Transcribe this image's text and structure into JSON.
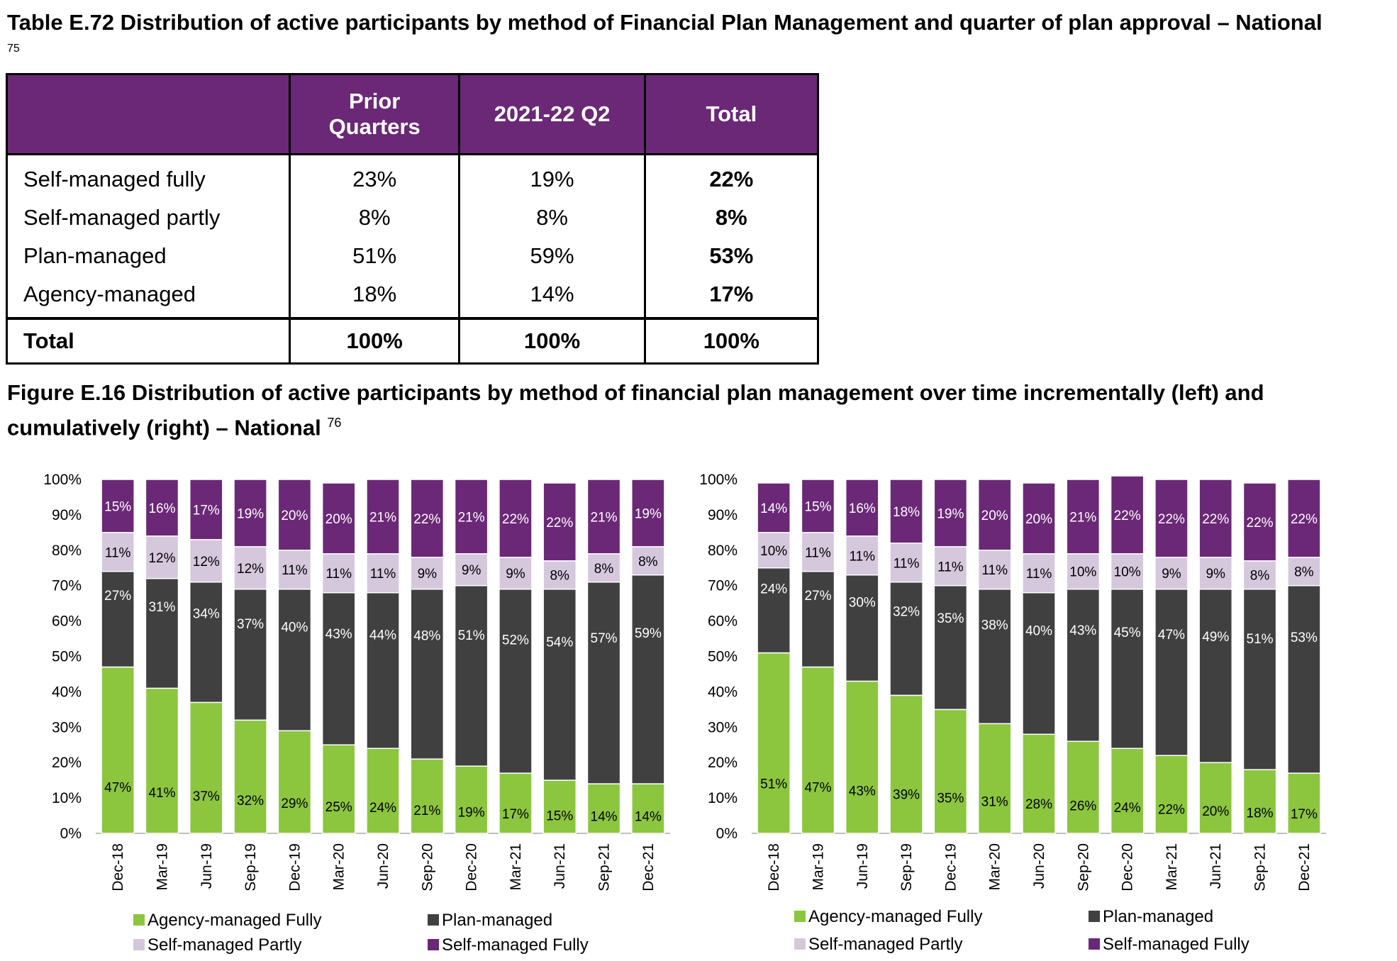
{
  "table": {
    "title": "Table E.72 Distribution of active participants by method of Financial Plan Management and quarter of plan approval – National",
    "footnote": "75",
    "headers": [
      "",
      "Prior\nQuarters",
      "2021-22 Q2",
      "Total"
    ],
    "rows": [
      {
        "label": "Self-managed fully",
        "prior": "23%",
        "q2": "19%",
        "total": "22%"
      },
      {
        "label": "Self-managed partly",
        "prior": "8%",
        "q2": "8%",
        "total": "8%"
      },
      {
        "label": "Plan-managed",
        "prior": "51%",
        "q2": "59%",
        "total": "53%"
      },
      {
        "label": "Agency-managed",
        "prior": "18%",
        "q2": "14%",
        "total": "17%"
      }
    ],
    "total_row": {
      "label": "Total",
      "prior": "100%",
      "q2": "100%",
      "total": "100%"
    }
  },
  "figure": {
    "title": "Figure E.16 Distribution of active participants by method of financial plan management over time incrementally (left) and cumulatively (right) – National",
    "footnote": "76"
  },
  "colors": {
    "agency": "#8cc63f",
    "plan": "#404040",
    "self_partly": "#d5c8dd",
    "self_fully": "#6b2877",
    "header_bg": "#6b2877"
  },
  "chart_data": [
    {
      "type": "bar",
      "stacked": true,
      "categories": [
        "Dec-18",
        "Mar-19",
        "Jun-19",
        "Sep-19",
        "Dec-19",
        "Mar-20",
        "Jun-20",
        "Sep-20",
        "Dec-20",
        "Mar-21",
        "Jun-21",
        "Sep-21",
        "Dec-21"
      ],
      "ylim": [
        0,
        100
      ],
      "yticks": [
        "0%",
        "10%",
        "20%",
        "30%",
        "40%",
        "50%",
        "60%",
        "70%",
        "80%",
        "90%",
        "100%"
      ],
      "series": [
        {
          "name": "Agency-managed Fully",
          "values": [
            47,
            41,
            37,
            32,
            29,
            25,
            24,
            21,
            19,
            17,
            15,
            14,
            14
          ]
        },
        {
          "name": "Plan-managed",
          "values": [
            27,
            31,
            34,
            37,
            40,
            43,
            44,
            48,
            51,
            52,
            54,
            57,
            59
          ]
        },
        {
          "name": "Self-managed Partly",
          "values": [
            11,
            12,
            12,
            12,
            11,
            11,
            11,
            9,
            9,
            9,
            8,
            8,
            8
          ]
        },
        {
          "name": "Self-managed Fully",
          "values": [
            15,
            16,
            17,
            19,
            20,
            20,
            21,
            22,
            21,
            22,
            22,
            21,
            19
          ]
        }
      ],
      "legend": "bottom"
    },
    {
      "type": "bar",
      "stacked": true,
      "categories": [
        "Dec-18",
        "Mar-19",
        "Jun-19",
        "Sep-19",
        "Dec-19",
        "Mar-20",
        "Jun-20",
        "Sep-20",
        "Dec-20",
        "Mar-21",
        "Jun-21",
        "Sep-21",
        "Dec-21"
      ],
      "ylim": [
        0,
        100
      ],
      "yticks": [
        "0%",
        "10%",
        "20%",
        "30%",
        "40%",
        "50%",
        "60%",
        "70%",
        "80%",
        "90%",
        "100%"
      ],
      "series": [
        {
          "name": "Agency-managed Fully",
          "values": [
            51,
            47,
            43,
            39,
            35,
            31,
            28,
            26,
            24,
            22,
            20,
            18,
            17
          ]
        },
        {
          "name": "Plan-managed",
          "values": [
            24,
            27,
            30,
            32,
            35,
            38,
            40,
            43,
            45,
            47,
            49,
            51,
            53
          ]
        },
        {
          "name": "Self-managed Partly",
          "values": [
            10,
            11,
            11,
            11,
            11,
            11,
            11,
            10,
            10,
            9,
            9,
            8,
            8
          ]
        },
        {
          "name": "Self-managed Fully",
          "values": [
            14,
            15,
            16,
            18,
            19,
            20,
            20,
            21,
            22,
            22,
            22,
            22,
            22
          ]
        }
      ],
      "legend": "bottom"
    }
  ]
}
